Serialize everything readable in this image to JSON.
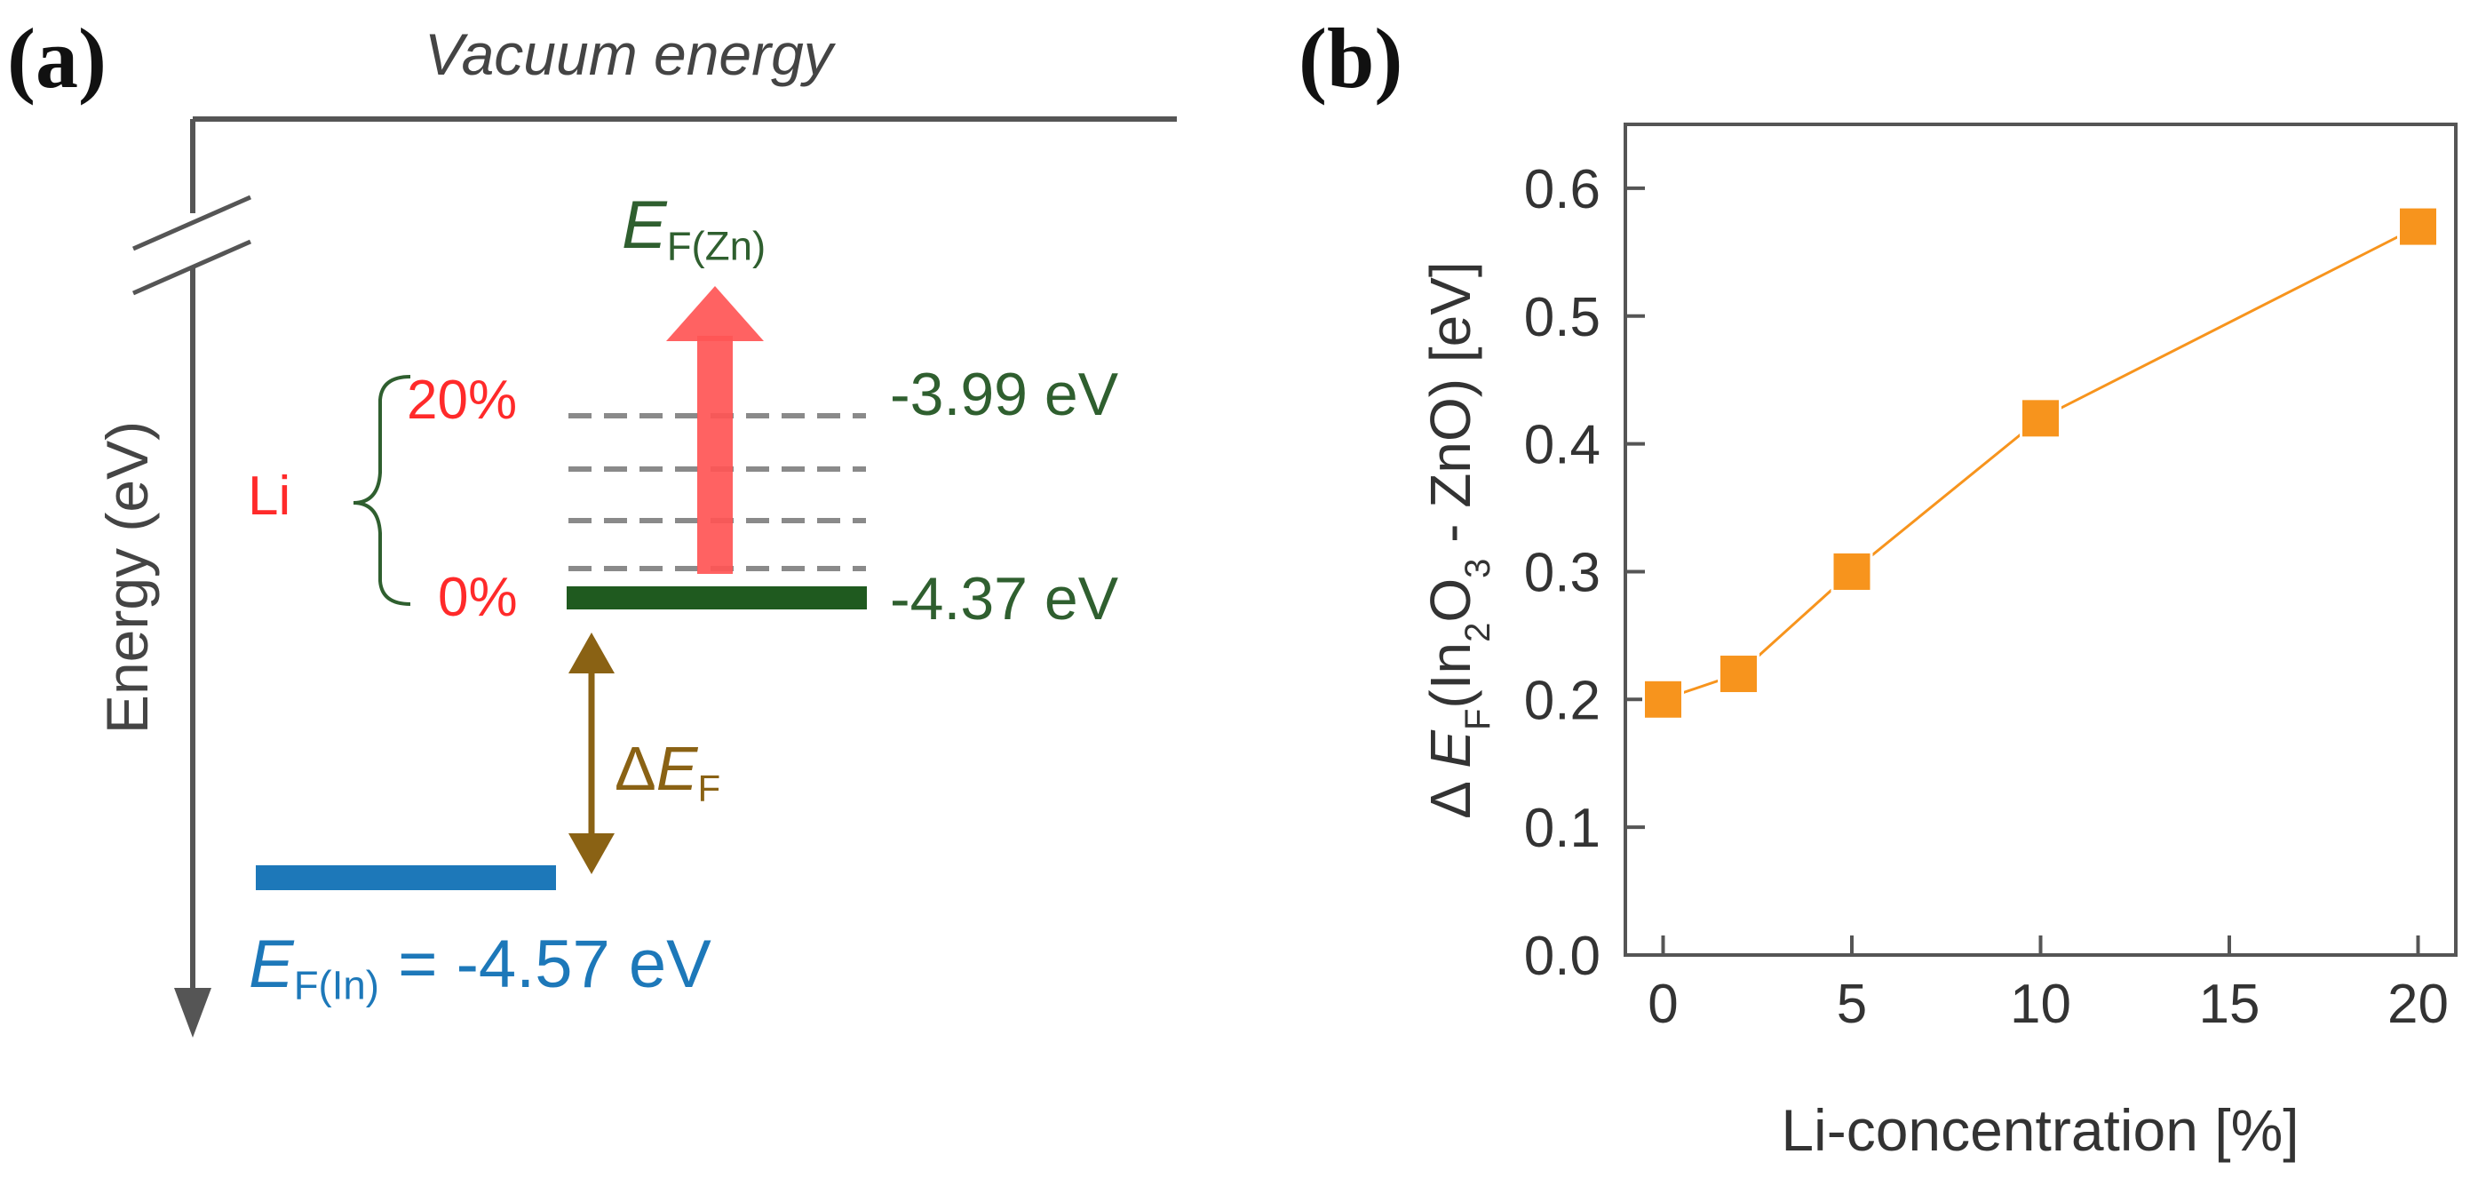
{
  "panel_a": {
    "label": "(a)",
    "vacuum_label": "Vacuum energy",
    "yaxis_label": "Energy (eV)",
    "li_label": "Li",
    "pct_high": "20%",
    "pct_low": "0%",
    "ef_zn_main": "E",
    "ef_zn_sub": "F(Zn)",
    "level_high": "-3.99 eV",
    "level_low": "-4.37 eV",
    "delta_symbol": "Δ",
    "delta_main": "E",
    "delta_sub": "F",
    "ef_in_main": "E",
    "ef_in_sub": "F(In)",
    "ef_in_value": " = -4.57 eV",
    "colors": {
      "zn_level": "#1f5a1f",
      "in_level": "#1d78b9",
      "arrow_up": "#ff5555",
      "delta_arrow": "#8a6214",
      "red_text": "#ff2a2a"
    }
  },
  "panel_b": {
    "label": "(b)"
  },
  "chart_data": {
    "type": "line",
    "title": "",
    "xlabel": "Li-concentration [%]",
    "ylabel_parts": [
      "Δ ",
      "E",
      "F",
      "(In",
      "2",
      "O",
      "3",
      " - ZnO) [eV]"
    ],
    "x": [
      0,
      2,
      5,
      10,
      20
    ],
    "series": [
      {
        "name": "ΔEF",
        "values": [
          0.2,
          0.22,
          0.3,
          0.42,
          0.57
        ],
        "color": "#f7941d"
      }
    ],
    "xlim": [
      -1,
      21
    ],
    "ylim": [
      0.0,
      0.65
    ],
    "xticks": [
      0,
      5,
      10,
      15,
      20
    ],
    "yticks": [
      0.0,
      0.1,
      0.2,
      0.3,
      0.4,
      0.5,
      0.6
    ],
    "xtick_labels": [
      "0",
      "5",
      "10",
      "15",
      "20"
    ],
    "ytick_labels": [
      "0.0",
      "0.1",
      "0.2",
      "0.3",
      "0.4",
      "0.5",
      "0.6"
    ],
    "grid": false,
    "marker": "square"
  }
}
